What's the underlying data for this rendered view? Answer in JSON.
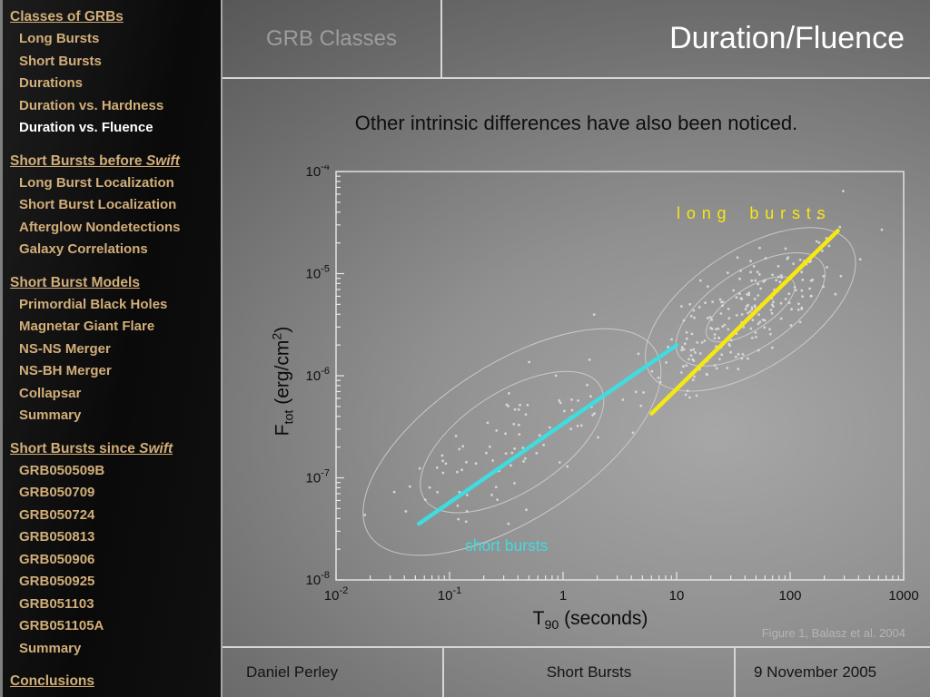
{
  "header": {
    "section_label": "GRB Classes",
    "slide_title": "Duration/Fluence"
  },
  "content": {
    "heading": "Other intrinsic differences have also been noticed."
  },
  "footer": {
    "author": "Daniel Perley",
    "section": "Short Bursts",
    "date": "9 November 2005"
  },
  "sidebar": {
    "sections": [
      {
        "title": "Classes of GRBs",
        "title_italic": "",
        "items": [
          {
            "label": "Long Bursts",
            "active": false
          },
          {
            "label": "Short Bursts",
            "active": false
          },
          {
            "label": "Durations",
            "active": false
          },
          {
            "label": "Duration vs. Hardness",
            "active": false
          },
          {
            "label": "Duration vs. Fluence",
            "active": true
          }
        ]
      },
      {
        "title": "Short Bursts before ",
        "title_italic": "Swift",
        "items": [
          {
            "label": "Long Burst Localization",
            "active": false
          },
          {
            "label": "Short Burst Localization",
            "active": false
          },
          {
            "label": "Afterglow Nondetections",
            "active": false
          },
          {
            "label": "Galaxy Correlations",
            "active": false
          }
        ]
      },
      {
        "title": "Short Burst Models",
        "title_italic": "",
        "items": [
          {
            "label": "Primordial Black Holes",
            "active": false
          },
          {
            "label": "Magnetar Giant Flare",
            "active": false
          },
          {
            "label": "NS-NS Merger",
            "active": false
          },
          {
            "label": "NS-BH Merger",
            "active": false
          },
          {
            "label": "Collapsar",
            "active": false
          },
          {
            "label": "Summary",
            "active": false
          }
        ]
      },
      {
        "title": "Short Bursts since ",
        "title_italic": "Swift",
        "items": [
          {
            "label": "GRB050509B",
            "active": false
          },
          {
            "label": "GRB050709",
            "active": false
          },
          {
            "label": "GRB050724",
            "active": false
          },
          {
            "label": "GRB050813",
            "active": false
          },
          {
            "label": "GRB050906",
            "active": false
          },
          {
            "label": "GRB050925",
            "active": false
          },
          {
            "label": "GRB051103",
            "active": false
          },
          {
            "label": "GRB051105A",
            "active": false
          },
          {
            "label": "Summary",
            "active": false
          }
        ]
      },
      {
        "title": "Conclusions",
        "title_italic": "",
        "items": []
      }
    ]
  },
  "chart_data": {
    "type": "scatter",
    "title": "",
    "xlabel": "T_90 (seconds)",
    "ylabel": "F_tot (erg/cm^2)",
    "xlabel_parts": {
      "base": "T",
      "sub": "90",
      "rest": " (seconds)"
    },
    "ylabel_parts": {
      "base": "F",
      "sub": "tot",
      "mid": " (erg/cm",
      "sup": "2",
      "end": ")"
    },
    "x_scale": "log",
    "y_scale": "log",
    "xlim_log": [
      -2,
      3
    ],
    "ylim_log": [
      -8,
      -4
    ],
    "x_ticks": [
      {
        "log": -2,
        "base": "10",
        "exp": "-2"
      },
      {
        "log": -1,
        "base": "10",
        "exp": "-1"
      },
      {
        "log": 0,
        "base": "1",
        "exp": ""
      },
      {
        "log": 1,
        "base": "10",
        "exp": ""
      },
      {
        "log": 2,
        "base": "100",
        "exp": ""
      },
      {
        "log": 3,
        "base": "1000",
        "exp": ""
      }
    ],
    "y_ticks": [
      {
        "log": -4,
        "base": "10",
        "exp": "-4"
      },
      {
        "log": -5,
        "base": "10",
        "exp": "-5"
      },
      {
        "log": -6,
        "base": "10",
        "exp": "-6"
      },
      {
        "log": -7,
        "base": "10",
        "exp": "-7"
      },
      {
        "log": -8,
        "base": "10",
        "exp": "-8"
      }
    ],
    "series": [
      {
        "name": "short bursts",
        "color": "#3FDCE0",
        "center_log": [
          -0.45,
          -6.65
        ],
        "sigma_log": [
          0.5,
          0.45
        ],
        "corr": 0.75,
        "n_points": 90,
        "contour_ellipses_log": [
          [
            0.92,
            0.49
          ],
          [
            1.5,
            0.76
          ]
        ],
        "tilt_deg": -33,
        "fit_line_log": [
          [
            -1.27,
            -7.45
          ],
          [
            1.0,
            -5.7
          ]
        ]
      },
      {
        "name": "long bursts",
        "color": "#F7E713",
        "center_log": [
          1.65,
          -5.35
        ],
        "sigma_log": [
          0.42,
          0.4
        ],
        "corr": 0.75,
        "n_points": 210,
        "contour_ellipses_log": [
          [
            0.45,
            0.2
          ],
          [
            0.75,
            0.38
          ],
          [
            1.05,
            0.58
          ]
        ],
        "tilt_deg": -33,
        "fit_line_log": [
          [
            0.78,
            -6.37
          ],
          [
            2.42,
            -4.58
          ]
        ]
      }
    ],
    "annotations": [
      {
        "text": "long bursts",
        "color": "#F7E713"
      },
      {
        "text": "short bursts",
        "color": "#3FDCE0"
      }
    ],
    "caption": "Figure 1, Balasz et al. 2004",
    "point_color": "#DCDCDC",
    "frame_color": "#E8E8E8",
    "tick_label_color": "#111111"
  }
}
